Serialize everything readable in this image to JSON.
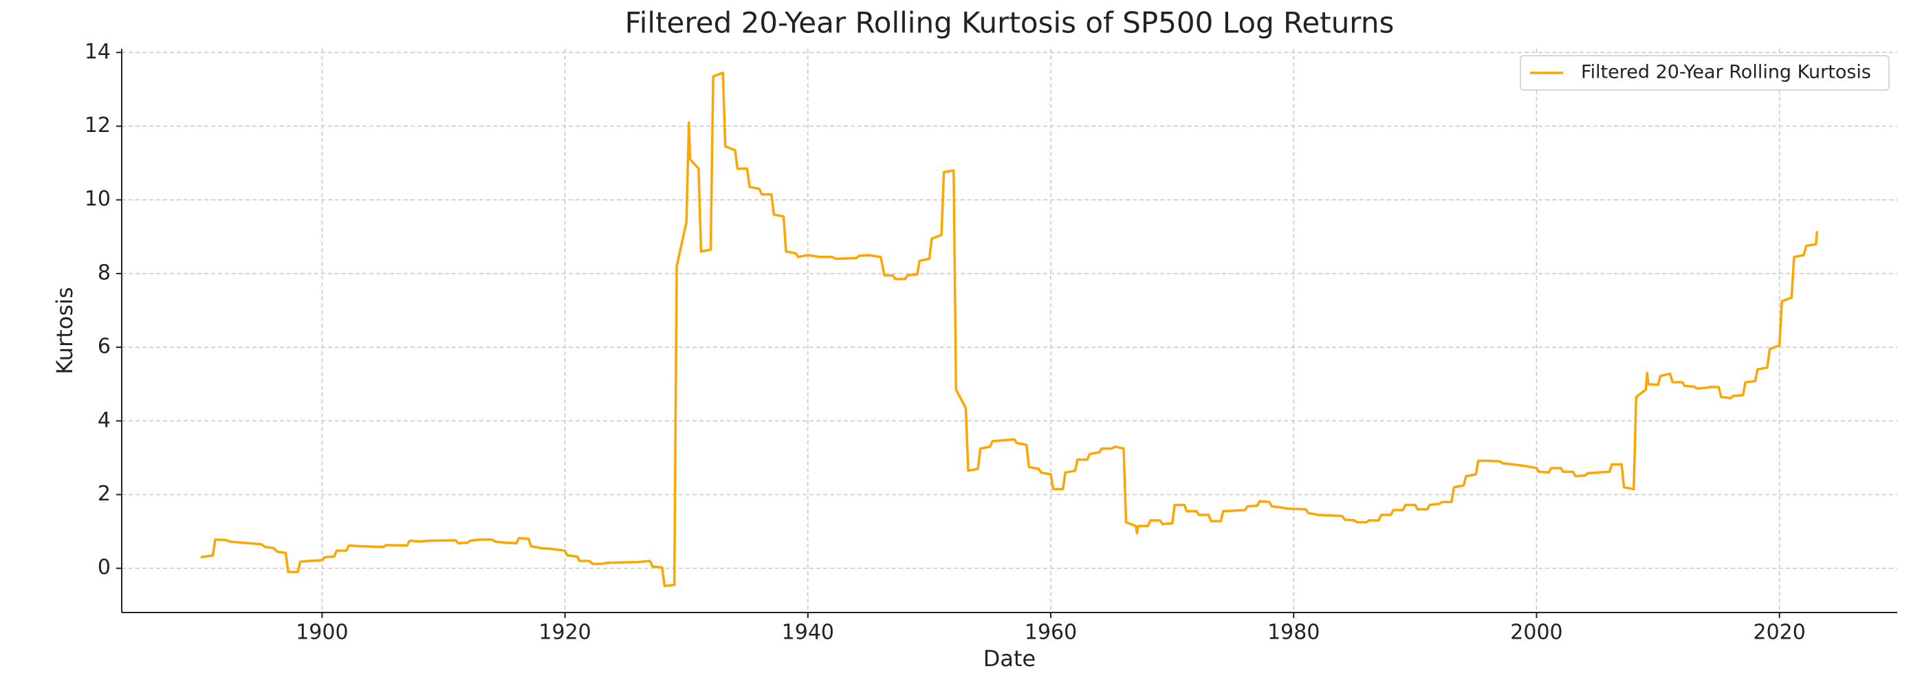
{
  "chart_data": {
    "type": "line",
    "title": "Filtered 20-Year Rolling Kurtosis of SP500 Log Returns",
    "x_label": "Date",
    "y_label": "Kurtosis",
    "xlim": [
      1883.5,
      2029.7
    ],
    "xticks": [
      1900,
      1920,
      1940,
      1960,
      1980,
      2000,
      2020
    ],
    "ylim": [
      -1.2,
      14.1
    ],
    "yticks": [
      0,
      2,
      4,
      6,
      8,
      10,
      12,
      14
    ],
    "grid": true,
    "legend": "upper right",
    "x": [
      1890,
      1891,
      1891.2,
      1892,
      1892.5,
      1894,
      1895,
      1895.3,
      1896,
      1896.3,
      1897,
      1897.2,
      1898,
      1898.2,
      1899,
      1900,
      1900.2,
      1901,
      1901.2,
      1902,
      1902.2,
      1903,
      1905,
      1905.3,
      1907,
      1907.2,
      1908,
      1909,
      1911,
      1911.2,
      1912,
      1912.2,
      1913,
      1914,
      1914.3,
      1915,
      1916,
      1916.2,
      1917,
      1917.2,
      1918,
      1919,
      1920,
      1920.2,
      1921,
      1921.2,
      1922,
      1922.3,
      1923,
      1923.5,
      1926,
      1927,
      1927.2,
      1928,
      1928.2,
      1929,
      1929.2,
      1930,
      1930.2,
      1930.3,
      1931,
      1931.2,
      1932,
      1932.2,
      1933,
      1933.2,
      1934,
      1934.2,
      1935,
      1935.2,
      1936,
      1936.2,
      1937,
      1937.2,
      1938,
      1938.2,
      1939,
      1939.2,
      1940,
      1941,
      1942,
      1942.3,
      1944,
      1944.2,
      1945,
      1946,
      1946.3,
      1947,
      1947.2,
      1948,
      1948.2,
      1949,
      1949.2,
      1950,
      1950.2,
      1951,
      1951.2,
      1952,
      1952.2,
      1953,
      1953.2,
      1954,
      1954.2,
      1955,
      1955.2,
      1957,
      1957.2,
      1958,
      1958.2,
      1959,
      1959.2,
      1960,
      1960.2,
      1961,
      1961.2,
      1962,
      1962.2,
      1963,
      1963.2,
      1964,
      1964.2,
      1965,
      1965.3,
      1966,
      1966.2,
      1967,
      1967.1,
      1967.2,
      1968,
      1968.2,
      1969,
      1969.2,
      1970,
      1970.2,
      1971,
      1971.2,
      1972,
      1972.2,
      1973,
      1973.2,
      1974,
      1974.2,
      1976,
      1976.2,
      1977,
      1977.2,
      1978,
      1978.2,
      1979,
      1979.5,
      1981,
      1981.2,
      1982,
      1984,
      1984.2,
      1985,
      1985.2,
      1986,
      1986.2,
      1987,
      1987.2,
      1988,
      1988.2,
      1989,
      1989.2,
      1990,
      1990.2,
      1991,
      1991.2,
      1992,
      1992.2,
      1993,
      1993.2,
      1994,
      1994.2,
      1995,
      1995.2,
      1996,
      1997,
      1997.2,
      1998,
      1999,
      2000,
      2000.2,
      2001,
      2001.2,
      2002,
      2002.2,
      2003,
      2003.2,
      2004,
      2004.2,
      2006,
      2006.2,
      2007,
      2007.2,
      2008,
      2008.2,
      2009,
      2009.1,
      2009.2,
      2010,
      2010.2,
      2011,
      2011.2,
      2012,
      2012.2,
      2013,
      2013.2,
      2014,
      2014.2,
      2015,
      2015.2,
      2016,
      2016.2,
      2017,
      2017.2,
      2018,
      2018.2,
      2019,
      2019.2,
      2020,
      2020.2,
      2021,
      2021.2,
      2022,
      2022.2,
      2023,
      2023.1
    ],
    "series": [
      {
        "name": "Filtered 20-Year Rolling Kurtosis",
        "color": "#ffa500",
        "values": [
          0.3,
          0.35,
          0.78,
          0.77,
          0.72,
          0.68,
          0.65,
          0.58,
          0.55,
          0.45,
          0.42,
          -0.1,
          -0.1,
          0.18,
          0.2,
          0.22,
          0.3,
          0.32,
          0.48,
          0.48,
          0.62,
          0.6,
          0.58,
          0.63,
          0.62,
          0.75,
          0.73,
          0.75,
          0.76,
          0.68,
          0.7,
          0.75,
          0.78,
          0.78,
          0.72,
          0.7,
          0.68,
          0.82,
          0.8,
          0.6,
          0.55,
          0.52,
          0.48,
          0.35,
          0.32,
          0.2,
          0.2,
          0.12,
          0.12,
          0.15,
          0.17,
          0.2,
          0.05,
          0.02,
          -0.48,
          -0.45,
          8.2,
          9.4,
          12.1,
          11.1,
          10.85,
          8.6,
          8.65,
          13.35,
          13.45,
          11.45,
          11.35,
          10.85,
          10.85,
          10.35,
          10.3,
          10.15,
          10.15,
          9.6,
          9.55,
          8.6,
          8.55,
          8.45,
          8.5,
          8.45,
          8.45,
          8.4,
          8.42,
          8.48,
          8.5,
          8.45,
          7.95,
          7.95,
          7.85,
          7.85,
          7.95,
          7.98,
          8.35,
          8.4,
          8.95,
          9.05,
          10.75,
          10.8,
          4.85,
          4.35,
          2.65,
          2.7,
          3.25,
          3.3,
          3.45,
          3.5,
          3.4,
          3.35,
          2.75,
          2.7,
          2.6,
          2.55,
          2.15,
          2.15,
          2.6,
          2.65,
          2.95,
          2.95,
          3.1,
          3.15,
          3.25,
          3.25,
          3.3,
          3.25,
          1.25,
          1.15,
          0.95,
          1.15,
          1.15,
          1.3,
          1.3,
          1.2,
          1.22,
          1.72,
          1.72,
          1.55,
          1.55,
          1.45,
          1.45,
          1.28,
          1.28,
          1.55,
          1.58,
          1.68,
          1.7,
          1.82,
          1.8,
          1.68,
          1.65,
          1.62,
          1.6,
          1.5,
          1.45,
          1.42,
          1.32,
          1.3,
          1.25,
          1.25,
          1.3,
          1.3,
          1.45,
          1.45,
          1.58,
          1.58,
          1.72,
          1.72,
          1.6,
          1.6,
          1.72,
          1.75,
          1.8,
          1.8,
          2.2,
          2.25,
          2.5,
          2.55,
          2.92,
          2.92,
          2.9,
          2.85,
          2.82,
          2.78,
          2.72,
          2.62,
          2.6,
          2.72,
          2.72,
          2.62,
          2.62,
          2.5,
          2.52,
          2.58,
          2.62,
          2.82,
          2.82,
          2.2,
          2.15,
          4.65,
          4.85,
          5.3,
          5.0,
          4.98,
          5.22,
          5.28,
          5.05,
          5.05,
          4.95,
          4.93,
          4.88,
          4.9,
          4.92,
          4.92,
          4.65,
          4.62,
          4.68,
          4.7,
          5.05,
          5.08,
          5.4,
          5.45,
          5.95,
          6.05,
          7.25,
          7.35,
          8.45,
          8.5,
          8.75,
          8.8,
          9.15
        ]
      }
    ]
  }
}
